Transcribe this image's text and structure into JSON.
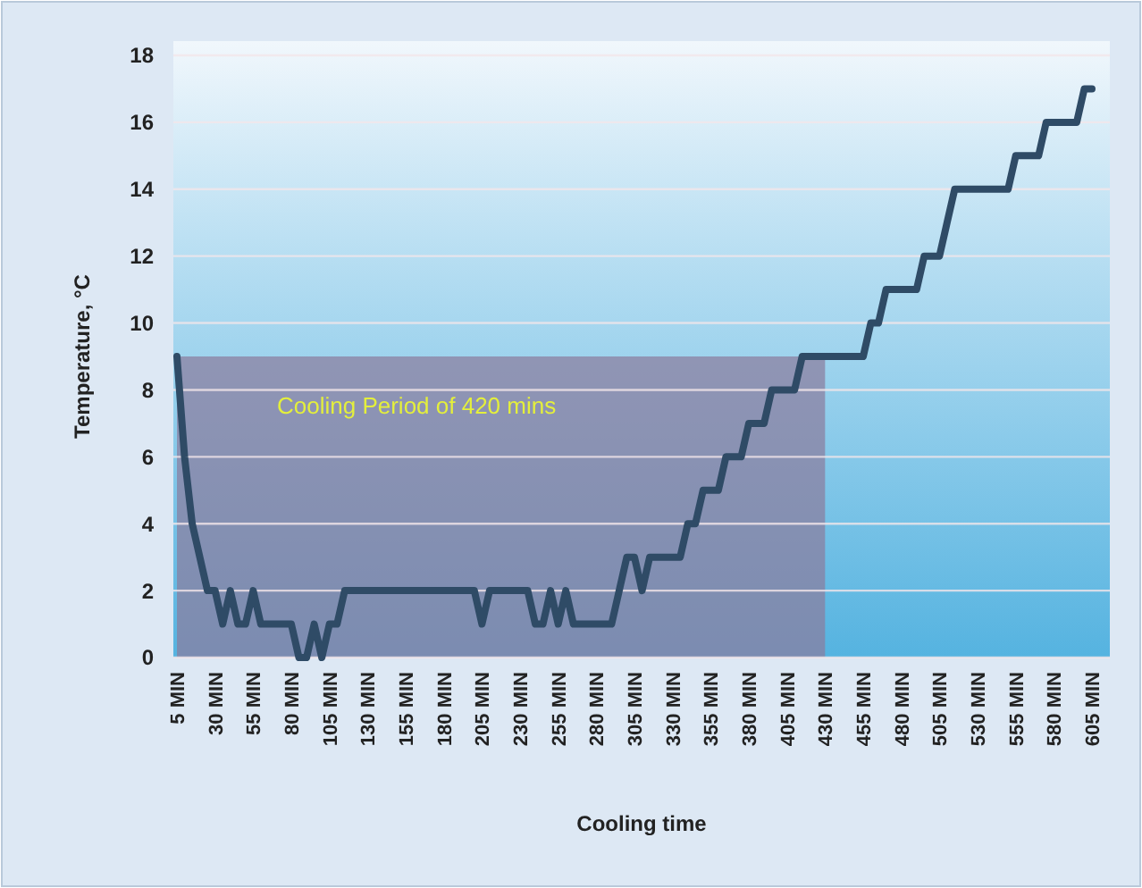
{
  "chart_data": {
    "type": "line",
    "xlabel": "Cooling time",
    "ylabel": "Temperature, °C",
    "categories": [
      "5 MIN",
      null,
      null,
      null,
      null,
      "30 MIN",
      null,
      null,
      null,
      null,
      "55 MIN",
      null,
      null,
      null,
      null,
      "80 MIN",
      null,
      null,
      null,
      null,
      "105 MIN",
      null,
      null,
      null,
      null,
      "130 MIN",
      null,
      null,
      null,
      null,
      "155 MIN",
      null,
      null,
      null,
      null,
      "180 MIN",
      null,
      null,
      null,
      null,
      "205 MIN",
      null,
      null,
      null,
      null,
      "230 MIN",
      null,
      null,
      null,
      null,
      "255 MIN",
      null,
      null,
      null,
      null,
      "280 MIN",
      null,
      null,
      null,
      null,
      "305 MIN",
      null,
      null,
      null,
      null,
      "330 MIN",
      null,
      null,
      null,
      null,
      "355 MIN",
      null,
      null,
      null,
      null,
      "380 MIN",
      null,
      null,
      null,
      null,
      "405 MIN",
      null,
      null,
      null,
      null,
      "430 MIN",
      null,
      null,
      null,
      null,
      "455 MIN",
      null,
      null,
      null,
      null,
      "480 MIN",
      null,
      null,
      null,
      null,
      "505 MIN",
      null,
      null,
      null,
      null,
      "530 MIN",
      null,
      null,
      null,
      null,
      "555 MIN",
      null,
      null,
      null,
      null,
      "580 MIN",
      null,
      null,
      null,
      null,
      "605 MIN"
    ],
    "series": [
      {
        "color": "#2f4b66",
        "values": [
          9,
          6,
          4,
          3,
          2,
          2,
          1,
          2,
          1,
          1,
          2,
          1,
          1,
          1,
          1,
          1,
          0,
          0,
          1,
          0,
          1,
          1,
          2,
          2,
          2,
          2,
          2,
          2,
          2,
          2,
          2,
          2,
          2,
          2,
          2,
          2,
          2,
          2,
          2,
          2,
          1,
          2,
          2,
          2,
          2,
          2,
          2,
          1,
          1,
          2,
          1,
          2,
          1,
          1,
          1,
          1,
          1,
          1,
          2,
          3,
          3,
          2,
          3,
          3,
          3,
          3,
          3,
          4,
          4,
          5,
          5,
          5,
          6,
          6,
          6,
          7,
          7,
          7,
          8,
          8,
          8,
          8,
          9,
          9,
          9,
          9,
          9,
          9,
          9,
          9,
          9,
          10,
          10,
          11,
          11,
          11,
          11,
          11,
          12,
          12,
          12,
          13,
          14,
          14,
          14,
          14,
          14,
          14,
          14,
          14,
          15,
          15,
          15,
          15,
          16,
          16,
          16,
          16,
          16,
          17,
          17
        ]
      }
    ],
    "ylim": [
      0,
      18
    ],
    "yticks": [
      0,
      2,
      4,
      6,
      8,
      10,
      12,
      14,
      16,
      18
    ],
    "grid": "y",
    "marker": "none",
    "line_style": "solid",
    "bands": [
      {
        "axis": "x",
        "from": "5 MIN",
        "to": "430 MIN",
        "label": "Cooling Period of 420 mins",
        "color": "#8a7d9e"
      }
    ]
  }
}
